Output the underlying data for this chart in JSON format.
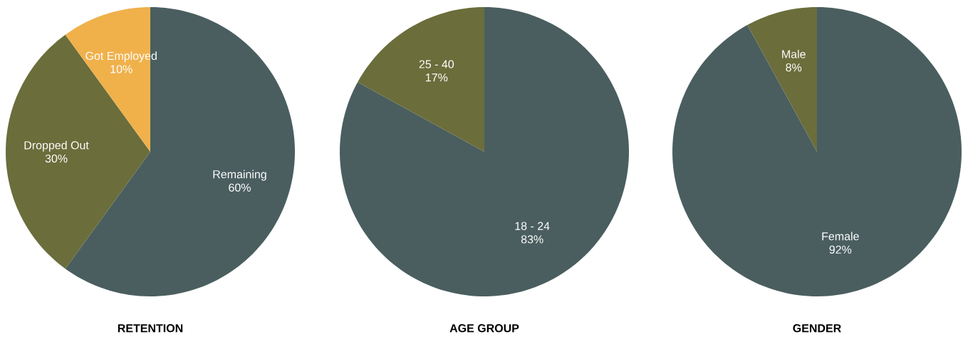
{
  "chart_data": [
    {
      "type": "pie",
      "title": "RETENTION",
      "categories": [
        "Remaining",
        "Dropped Out",
        "Got Employed"
      ],
      "values": [
        60,
        30,
        10
      ],
      "value_labels": [
        "60%",
        "30%",
        "10%"
      ],
      "colors": [
        "#4a5e5f",
        "#6b6d3b",
        "#f0b14b"
      ]
    },
    {
      "type": "pie",
      "title": "AGE GROUP",
      "categories": [
        "18 - 24",
        "25 - 40"
      ],
      "values": [
        83,
        17
      ],
      "value_labels": [
        "83%",
        "17%"
      ],
      "colors": [
        "#4a5e5f",
        "#6b6d3b"
      ]
    },
    {
      "type": "pie",
      "title": "GENDER",
      "categories": [
        "Female",
        "Male"
      ],
      "values": [
        92,
        8
      ],
      "value_labels": [
        "92%",
        "8%"
      ],
      "colors": [
        "#4a5e5f",
        "#6b6d3b"
      ]
    }
  ]
}
